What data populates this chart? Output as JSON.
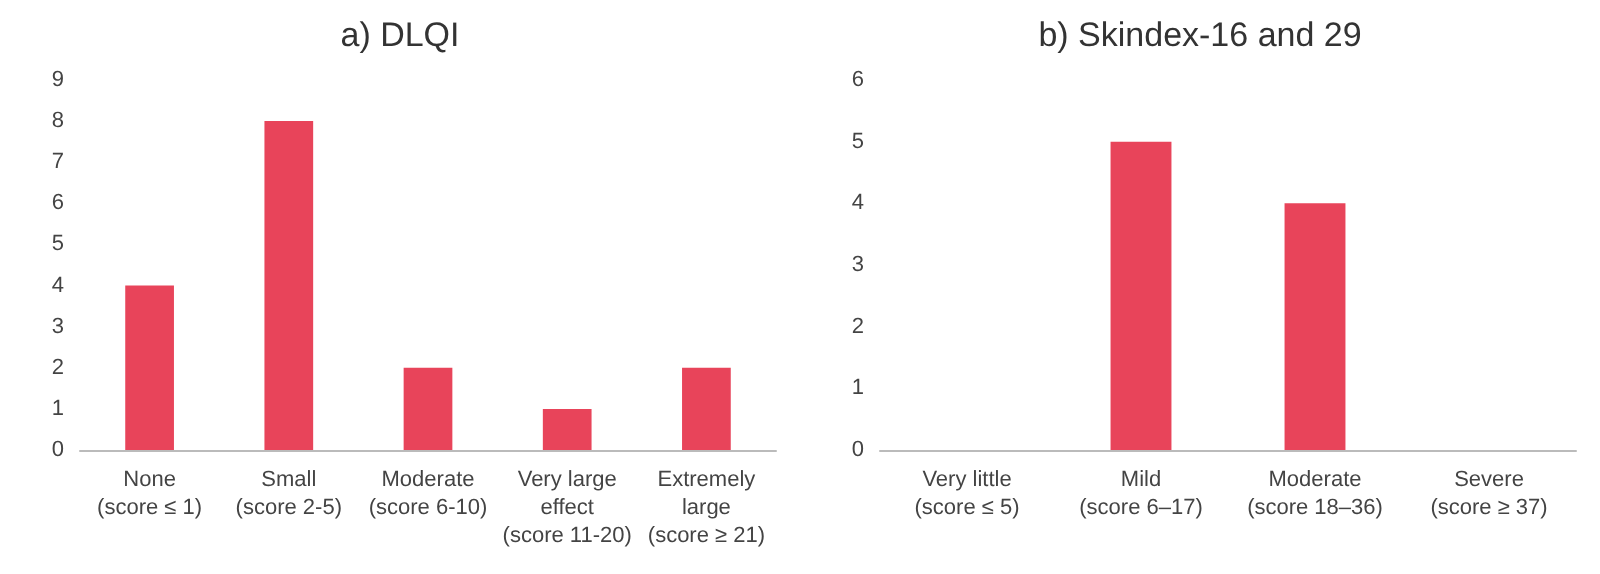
{
  "chart_data": [
    {
      "type": "bar",
      "title": "a) DLQI",
      "categories": [
        "None\n(score ≤ 1)",
        "Small\n(score 2-5)",
        "Moderate\n(score 6-10)",
        "Very large\neffect\n(score 11-20)",
        "Extremely\nlarge\n(score ≥ 21)"
      ],
      "values": [
        4,
        8,
        2,
        1,
        2
      ],
      "color": "#e8445a",
      "ylim": [
        0,
        9
      ],
      "yticks": [
        0,
        1,
        2,
        3,
        4,
        5,
        6,
        7,
        8,
        9
      ],
      "grid": false
    },
    {
      "type": "bar",
      "title": "b) Skindex-16 and 29",
      "categories": [
        "Very little\n(score ≤ 5)",
        "Mild\n(score 6–17)",
        "Moderate\n(score 18–36)",
        "Severe\n(score ≥ 37)"
      ],
      "values": [
        0,
        5,
        4,
        0
      ],
      "color": "#e8445a",
      "ylim": [
        0,
        6
      ],
      "yticks": [
        0,
        1,
        2,
        3,
        4,
        5,
        6
      ],
      "grid": false
    }
  ]
}
